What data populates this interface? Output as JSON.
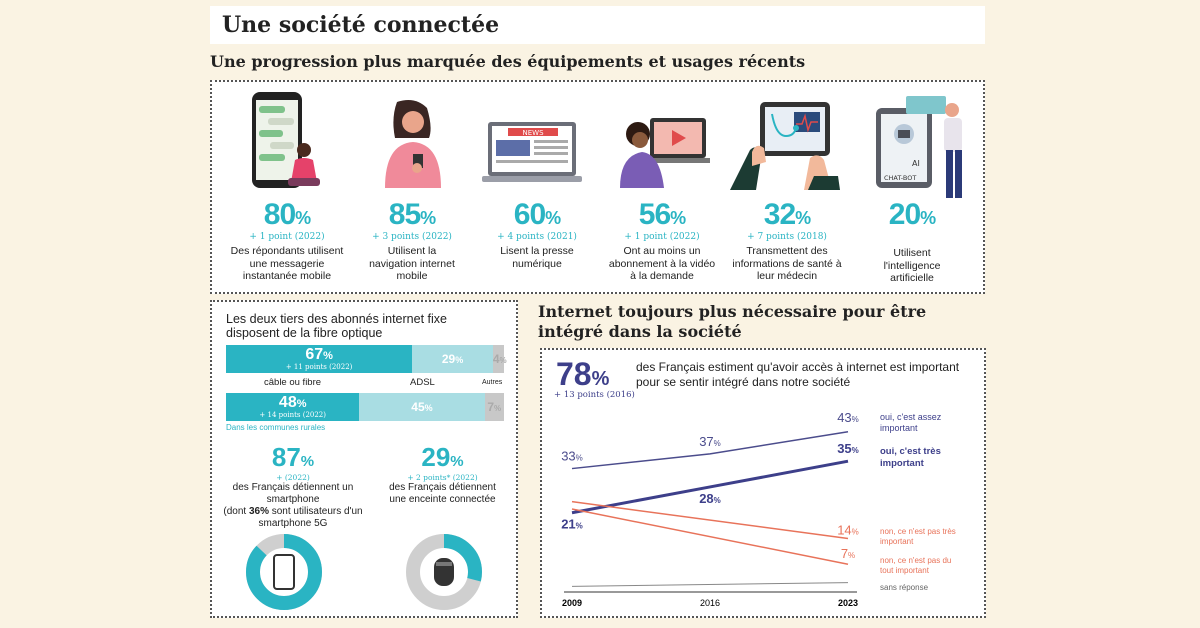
{
  "page_title": "Une société connectée",
  "section1_title": "Une progression plus marquée des équipements et usages récents",
  "stats": [
    {
      "value": "80",
      "pct": "%",
      "change": "+ 1 point (2022)",
      "desc": "Des répondants utilisent une messagerie instantanée mobile",
      "icon": "phone-messaging-icon"
    },
    {
      "value": "85",
      "pct": "%",
      "change": "+ 3 points (2022)",
      "desc": "Utilisent la navigation internet mobile",
      "icon": "woman-phone-icon"
    },
    {
      "value": "60",
      "pct": "%",
      "change": "+ 4 points (2021)",
      "desc": "Lisent la presse numérique",
      "icon": "laptop-news-icon"
    },
    {
      "value": "56",
      "pct": "%",
      "change": "+ 1 point (2022)",
      "desc": "Ont au moins un abonnement à la vidéo à la demande",
      "icon": "video-on-demand-icon"
    },
    {
      "value": "32",
      "pct": "%",
      "change": "+ 7 points (2018)",
      "desc": "Transmettent des informations de santé à leur médecin",
      "icon": "tablet-health-icon"
    },
    {
      "value": "20",
      "pct": "%",
      "change": "",
      "desc": "Utilisent l'intelligence artificielle",
      "icon": "ai-chatbot-icon"
    }
  ],
  "news_sign": "NEWS",
  "chatbot_ai": "AI",
  "chatbot_label": "CHAT-BOT",
  "fibre": {
    "title": "Les deux tiers des abonnés internet fixe disposent de la fibre optique",
    "row1": {
      "fibre": "67",
      "fibre_change": "+ 11 points (2022)",
      "adsl": "29",
      "autres": "4",
      "pct": "%"
    },
    "labels": {
      "fibre": "câble ou fibre",
      "adsl": "ADSL",
      "autres": "Autres"
    },
    "row2": {
      "fibre": "48",
      "fibre_change": "+ 14 points (2022)",
      "adsl": "45",
      "autres": "7",
      "pct": "%"
    },
    "rural": "Dans les communes rurales",
    "colors": {
      "fibre": "#2ab4c3",
      "adsl": "#a9dde3",
      "autres": "#c8c8c8"
    }
  },
  "smartphone": {
    "value": "87",
    "pct": "%",
    "change": "+ (2022)",
    "desc1": "des Français détiennent un smartphone",
    "desc2": "(dont ",
    "desc_bold": "36%",
    "desc3": " sont utilisateurs d'un smartphone 5G",
    "share": 0.87
  },
  "speaker": {
    "value": "29",
    "pct": "%",
    "change": "+ 2 points* (2022)",
    "desc": "des Français détiennent une enceinte connectée",
    "share": 0.29
  },
  "section2_title": "Internet toujours plus nécessaire pour être intégré dans la société",
  "integration": {
    "value": "78",
    "pct": "%",
    "change": "+ 13 points (2016)",
    "desc": "des Français estiment qu'avoir accès à internet est important pour se sentir intégré dans notre société"
  },
  "chart_data": {
    "type": "line",
    "title": "des Français estiment qu'avoir accès à internet est important pour se sentir intégré dans notre société",
    "x": [
      "2009",
      "2016",
      "2023"
    ],
    "ylim": [
      0,
      50
    ],
    "series": [
      {
        "name": "oui, c'est assez important",
        "values": [
          33,
          37,
          43
        ],
        "labels": [
          "33",
          "37",
          "43"
        ],
        "color": "#4b4c8c"
      },
      {
        "name": "oui, c'est très important",
        "values": [
          21,
          28,
          35
        ],
        "labels": [
          "21",
          "28",
          "35"
        ],
        "color": "#3d3f8a"
      },
      {
        "name": "non, ce n'est pas très important",
        "values": [
          24,
          null,
          14
        ],
        "labels": [
          "",
          "",
          "14"
        ],
        "color": "#e8735a"
      },
      {
        "name": "non, ce n'est pas du tout important",
        "values": [
          22,
          null,
          7
        ],
        "labels": [
          "",
          "",
          "7"
        ],
        "color": "#e8735a"
      },
      {
        "name": "sans réponse",
        "values": [
          1,
          null,
          2
        ],
        "labels": [
          "",
          "",
          ""
        ],
        "color": "#888888"
      }
    ],
    "label_suffix": "%"
  }
}
